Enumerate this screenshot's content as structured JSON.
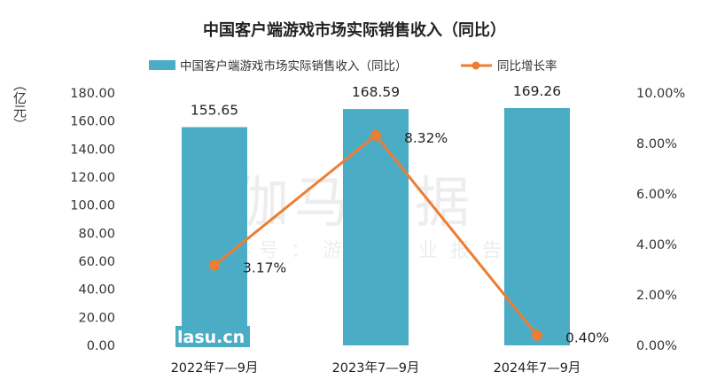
{
  "chart_data": {
    "type": "bar+line",
    "title": "中国客户端游戏市场实际销售收入（同比）",
    "categories": [
      "2022年7—9月",
      "2023年7—9月",
      "2024年7—9月"
    ],
    "series": [
      {
        "name": "中国客户端游戏市场实际销售收入（同比）",
        "type": "bar",
        "axis": "left",
        "values": [
          155.65,
          168.59,
          169.26
        ],
        "labels": [
          "155.65",
          "168.59",
          "169.26"
        ],
        "color": "#4BACC6"
      },
      {
        "name": "同比增长率",
        "type": "line",
        "axis": "right",
        "values": [
          3.17,
          8.32,
          0.4
        ],
        "labels": [
          "3.17%",
          "8.32%",
          "0.40%"
        ],
        "color": "#ED7D31"
      }
    ],
    "ylabel": "（亿元）",
    "ylim": [
      0,
      180
    ],
    "yticks": [
      "0.00",
      "20.00",
      "40.00",
      "60.00",
      "80.00",
      "100.00",
      "120.00",
      "140.00",
      "160.00",
      "180.00"
    ],
    "y2lim": [
      0,
      10
    ],
    "y2ticks": [
      "0.00%",
      "2.00%",
      "4.00%",
      "6.00%",
      "8.00%",
      "10.00%"
    ],
    "legend": "top",
    "grid": false
  },
  "watermark": {
    "main": "伽马数据",
    "sub": "微信号：游戏产业报告",
    "site": "lasu.cn"
  }
}
